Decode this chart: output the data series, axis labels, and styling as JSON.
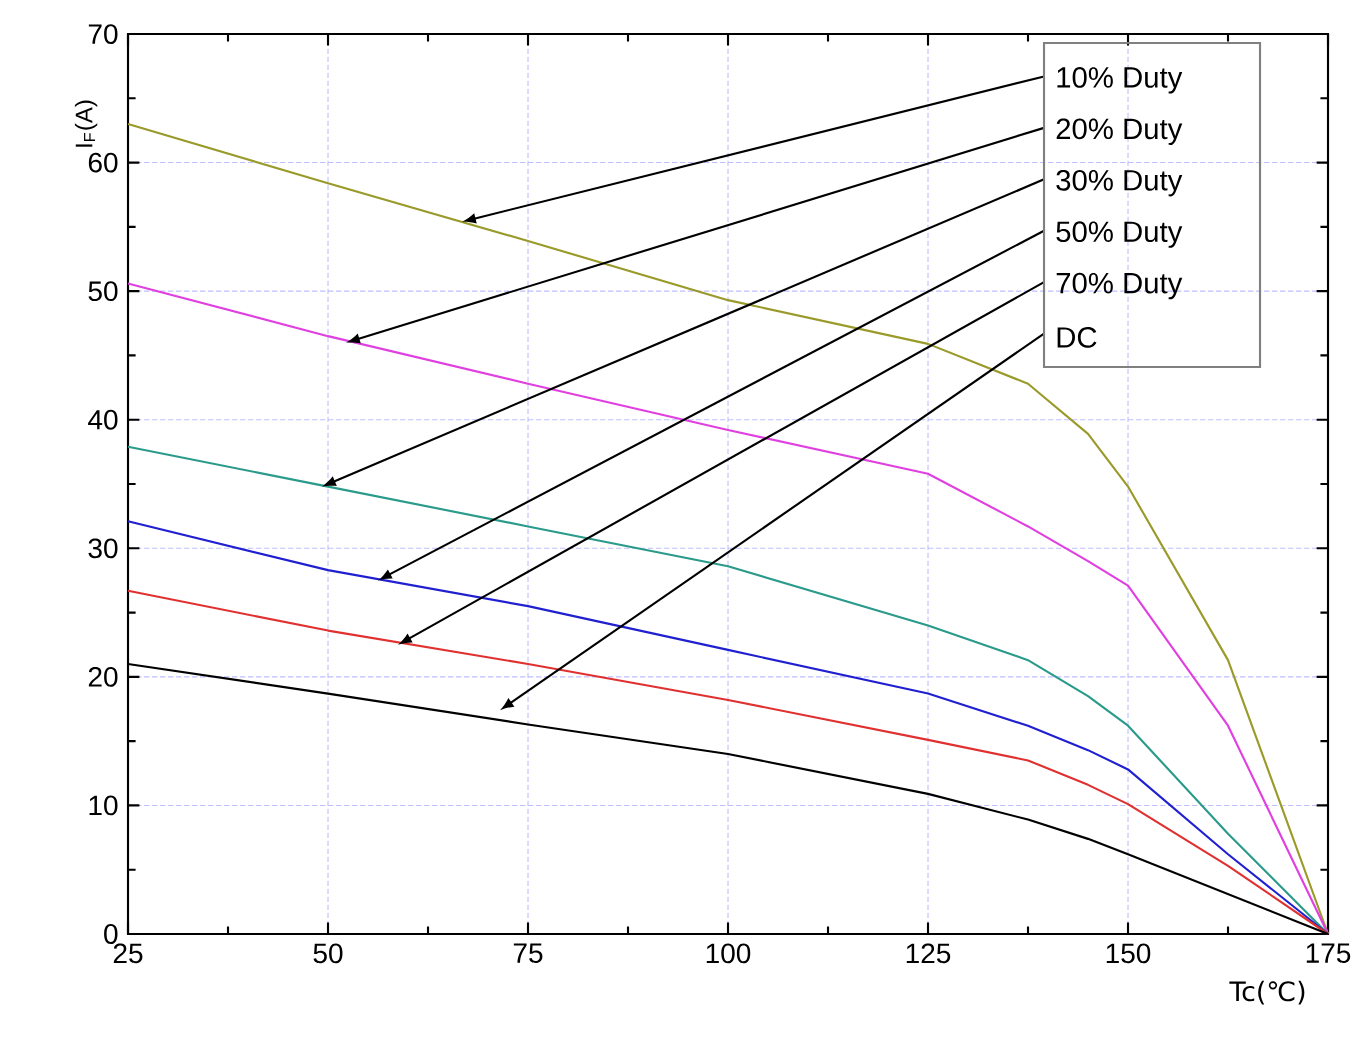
{
  "chart_data": {
    "type": "line",
    "xlabel": "Tc(℃)",
    "ylabel": "I$_{F}$(A)",
    "x": [
      25,
      50,
      75,
      100,
      125,
      137.5,
      145,
      150,
      162.5,
      175
    ],
    "series": [
      {
        "color": "#9a9a2a",
        "values": [
          63,
          58.4,
          53.9,
          49.3,
          45.9,
          42.8,
          38.9,
          34.8,
          21.3,
          0
        ]
      },
      {
        "color": "#e040e0",
        "values": [
          50.6,
          46.5,
          42.8,
          39.2,
          35.8,
          31.7,
          29.0,
          27.1,
          16.2,
          0
        ]
      },
      {
        "color": "#2a9a8a",
        "values": [
          37.9,
          34.8,
          31.7,
          28.6,
          24.0,
          21.3,
          18.5,
          16.2,
          7.8,
          0
        ]
      },
      {
        "color": "#2020d0",
        "values": [
          32.1,
          28.3,
          25.5,
          22.1,
          18.7,
          16.2,
          14.3,
          12.8,
          6.2,
          0
        ]
      },
      {
        "color": "#e03030",
        "values": [
          26.7,
          23.6,
          21.0,
          18.2,
          15.1,
          13.5,
          11.6,
          10.1,
          5.3,
          0
        ]
      },
      {
        "color": "#000000",
        "values": [
          21.0,
          18.7,
          16.3,
          14.0,
          10.9,
          8.9,
          7.4,
          6.2,
          3.1,
          0
        ]
      }
    ],
    "annotations": [
      {
        "text": "10% Duty",
        "x": 66.75,
        "y": 55.4
      },
      {
        "text": "20% Duty",
        "x": 52.25,
        "y": 46
      },
      {
        "text": "30% Duty",
        "x": 49.25,
        "y": 34.8
      },
      {
        "text": "50% Duty",
        "x": 56.25,
        "y": 27.5
      },
      {
        "text": "70% Duty",
        "x": 58.75,
        "y": 22.5
      },
      {
        "text": "DC",
        "x": 71.5,
        "y": 17.4
      }
    ],
    "xlim": [
      25,
      175
    ],
    "ylim": [
      0,
      70
    ],
    "xticks": [
      25,
      50,
      75,
      100,
      125,
      150,
      175
    ],
    "yticks": [
      0,
      10,
      20,
      30,
      40,
      50,
      60,
      70
    ],
    "grid": true,
    "marker": "none",
    "line_style": "solid"
  }
}
